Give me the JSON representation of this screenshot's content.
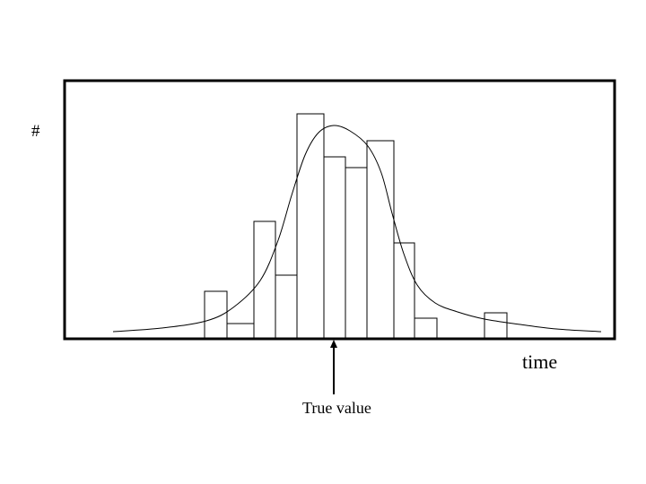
{
  "chart_data": {
    "type": "bar",
    "ylabel": "#",
    "xlabel": "time",
    "annotation": "True value",
    "grid": false,
    "bins": [
      {
        "start": 228,
        "end": 253,
        "count": 53
      },
      {
        "start": 253,
        "end": 283,
        "count": 17
      },
      {
        "start": 283,
        "end": 307,
        "count": 131
      },
      {
        "start": 307,
        "end": 331,
        "count": 71
      },
      {
        "start": 331,
        "end": 361,
        "count": 251
      },
      {
        "start": 361,
        "end": 385,
        "count": 203
      },
      {
        "start": 385,
        "end": 409,
        "count": 191
      },
      {
        "start": 409,
        "end": 439,
        "count": 221
      },
      {
        "start": 439,
        "end": 462,
        "count": 107
      },
      {
        "start": 462,
        "end": 487,
        "count": 23
      },
      {
        "start": 540,
        "end": 565,
        "count": 29
      }
    ],
    "fit_curve": [
      [
        126,
        8
      ],
      [
        180,
        12
      ],
      [
        230,
        20
      ],
      [
        260,
        35
      ],
      [
        290,
        65
      ],
      [
        310,
        110
      ],
      [
        325,
        160
      ],
      [
        340,
        205
      ],
      [
        355,
        230
      ],
      [
        372,
        238
      ],
      [
        390,
        232
      ],
      [
        410,
        215
      ],
      [
        425,
        185
      ],
      [
        437,
        140
      ],
      [
        450,
        95
      ],
      [
        465,
        60
      ],
      [
        485,
        40
      ],
      [
        510,
        30
      ],
      [
        540,
        22
      ],
      [
        580,
        16
      ],
      [
        620,
        11
      ],
      [
        670,
        8
      ]
    ],
    "xlim": [
      72,
      685
    ],
    "ylim": [
      0,
      288
    ],
    "true_value": 372
  }
}
